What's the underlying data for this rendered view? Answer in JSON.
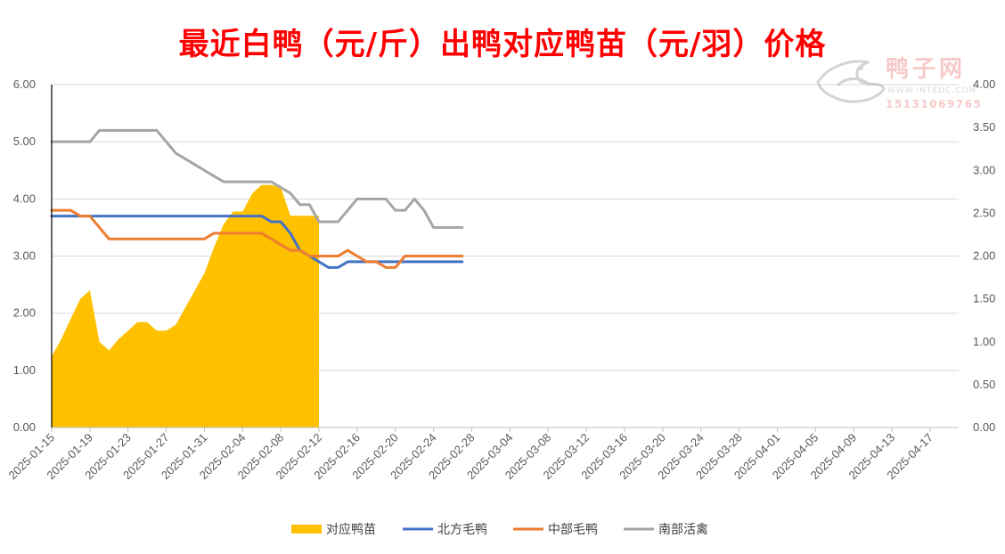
{
  "chart_data": {
    "type": "line",
    "title": "最近白鸭（元/斤）出鸭对应鸭苗（元/羽）价格",
    "left_axis": {
      "ylim": [
        0,
        6
      ],
      "ticks": [
        "0.00",
        "1.00",
        "2.00",
        "3.00",
        "4.00",
        "5.00",
        "6.00"
      ]
    },
    "right_axis": {
      "ylim": [
        0,
        4
      ],
      "ticks": [
        "0.00",
        "0.50",
        "1.00",
        "1.50",
        "2.00",
        "2.50",
        "3.00",
        "3.50",
        "4.00"
      ]
    },
    "x_start": "2025-01-15",
    "x_end": "2025-04-20",
    "x_tick_labels": [
      "2025-01-15",
      "2025-01-19",
      "2025-01-23",
      "2025-01-27",
      "2025-01-31",
      "2025-02-04",
      "2025-02-08",
      "2025-02-12",
      "2025-02-16",
      "2025-02-20",
      "2025-02-24",
      "2025-02-28",
      "2025-03-04",
      "2025-03-08",
      "2025-03-12",
      "2025-03-16",
      "2025-03-20",
      "2025-03-24",
      "2025-03-28",
      "2025-04-01",
      "2025-04-05",
      "2025-04-09",
      "2025-04-13",
      "2025-04-17"
    ],
    "grid": true,
    "legend_position": "bottom",
    "series": [
      {
        "name": "对应鸭苗",
        "type": "area",
        "axis": "right",
        "color": "#FFC000",
        "points": [
          [
            "2025-01-15",
            0.83
          ],
          [
            "2025-01-16",
            1.03
          ],
          [
            "2025-01-17",
            1.27
          ],
          [
            "2025-01-18",
            1.5
          ],
          [
            "2025-01-19",
            1.6
          ],
          [
            "2025-01-20",
            1.0
          ],
          [
            "2025-01-21",
            0.9
          ],
          [
            "2025-01-22",
            1.03
          ],
          [
            "2025-01-23",
            1.13
          ],
          [
            "2025-01-24",
            1.23
          ],
          [
            "2025-01-25",
            1.23
          ],
          [
            "2025-01-26",
            1.13
          ],
          [
            "2025-01-27",
            1.13
          ],
          [
            "2025-01-28",
            1.2
          ],
          [
            "2025-01-29",
            1.4
          ],
          [
            "2025-01-30",
            1.6
          ],
          [
            "2025-01-31",
            1.8
          ],
          [
            "2025-02-01",
            2.1
          ],
          [
            "2025-02-02",
            2.37
          ],
          [
            "2025-02-03",
            2.52
          ],
          [
            "2025-02-04",
            2.52
          ],
          [
            "2025-02-05",
            2.73
          ],
          [
            "2025-02-06",
            2.83
          ],
          [
            "2025-02-07",
            2.83
          ],
          [
            "2025-02-08",
            2.8
          ],
          [
            "2025-02-09",
            2.47
          ],
          [
            "2025-02-10",
            2.47
          ],
          [
            "2025-02-11",
            2.47
          ],
          [
            "2025-02-12",
            2.47
          ]
        ]
      },
      {
        "name": "北方毛鸭",
        "type": "line",
        "axis": "left",
        "color": "#4472C4",
        "points": [
          [
            "2025-01-15",
            3.7
          ],
          [
            "2025-01-16",
            3.7
          ],
          [
            "2025-01-17",
            3.7
          ],
          [
            "2025-01-18",
            3.7
          ],
          [
            "2025-01-19",
            3.7
          ],
          [
            "2025-01-20",
            3.7
          ],
          [
            "2025-01-21",
            3.7
          ],
          [
            "2025-01-22",
            3.7
          ],
          [
            "2025-01-23",
            3.7
          ],
          [
            "2025-01-24",
            3.7
          ],
          [
            "2025-01-25",
            3.7
          ],
          [
            "2025-01-26",
            3.7
          ],
          [
            "2025-01-27",
            3.7
          ],
          [
            "2025-01-28",
            3.7
          ],
          [
            "2025-01-29",
            3.7
          ],
          [
            "2025-01-30",
            3.7
          ],
          [
            "2025-01-31",
            3.7
          ],
          [
            "2025-02-01",
            3.7
          ],
          [
            "2025-02-02",
            3.7
          ],
          [
            "2025-02-03",
            3.7
          ],
          [
            "2025-02-04",
            3.7
          ],
          [
            "2025-02-05",
            3.7
          ],
          [
            "2025-02-06",
            3.7
          ],
          [
            "2025-02-07",
            3.6
          ],
          [
            "2025-02-08",
            3.6
          ],
          [
            "2025-02-09",
            3.4
          ],
          [
            "2025-02-10",
            3.1
          ],
          [
            "2025-02-11",
            3.0
          ],
          [
            "2025-02-12",
            2.9
          ],
          [
            "2025-02-13",
            2.8
          ],
          [
            "2025-02-14",
            2.8
          ],
          [
            "2025-02-15",
            2.9
          ],
          [
            "2025-02-16",
            2.9
          ],
          [
            "2025-02-17",
            2.9
          ],
          [
            "2025-02-18",
            2.9
          ],
          [
            "2025-02-19",
            2.9
          ],
          [
            "2025-02-20",
            2.9
          ],
          [
            "2025-02-21",
            2.9
          ],
          [
            "2025-02-22",
            2.9
          ],
          [
            "2025-02-23",
            2.9
          ],
          [
            "2025-02-24",
            2.9
          ],
          [
            "2025-02-25",
            2.9
          ],
          [
            "2025-02-26",
            2.9
          ],
          [
            "2025-02-27",
            2.9
          ]
        ]
      },
      {
        "name": "中部毛鸭",
        "type": "line",
        "axis": "left",
        "color": "#ED7D31",
        "points": [
          [
            "2025-01-15",
            3.8
          ],
          [
            "2025-01-16",
            3.8
          ],
          [
            "2025-01-17",
            3.8
          ],
          [
            "2025-01-18",
            3.7
          ],
          [
            "2025-01-19",
            3.7
          ],
          [
            "2025-01-20",
            3.5
          ],
          [
            "2025-01-21",
            3.3
          ],
          [
            "2025-01-22",
            3.3
          ],
          [
            "2025-01-23",
            3.3
          ],
          [
            "2025-01-24",
            3.3
          ],
          [
            "2025-01-25",
            3.3
          ],
          [
            "2025-01-26",
            3.3
          ],
          [
            "2025-01-27",
            3.3
          ],
          [
            "2025-01-28",
            3.3
          ],
          [
            "2025-01-29",
            3.3
          ],
          [
            "2025-01-30",
            3.3
          ],
          [
            "2025-01-31",
            3.3
          ],
          [
            "2025-02-01",
            3.4
          ],
          [
            "2025-02-02",
            3.4
          ],
          [
            "2025-02-03",
            3.4
          ],
          [
            "2025-02-04",
            3.4
          ],
          [
            "2025-02-05",
            3.4
          ],
          [
            "2025-02-06",
            3.4
          ],
          [
            "2025-02-07",
            3.3
          ],
          [
            "2025-02-08",
            3.2
          ],
          [
            "2025-02-09",
            3.1
          ],
          [
            "2025-02-10",
            3.1
          ],
          [
            "2025-02-11",
            3.0
          ],
          [
            "2025-02-12",
            3.0
          ],
          [
            "2025-02-13",
            3.0
          ],
          [
            "2025-02-14",
            3.0
          ],
          [
            "2025-02-15",
            3.1
          ],
          [
            "2025-02-16",
            3.0
          ],
          [
            "2025-02-17",
            2.9
          ],
          [
            "2025-02-18",
            2.9
          ],
          [
            "2025-02-19",
            2.8
          ],
          [
            "2025-02-20",
            2.8
          ],
          [
            "2025-02-21",
            3.0
          ],
          [
            "2025-02-22",
            3.0
          ],
          [
            "2025-02-23",
            3.0
          ],
          [
            "2025-02-24",
            3.0
          ],
          [
            "2025-02-25",
            3.0
          ],
          [
            "2025-02-26",
            3.0
          ],
          [
            "2025-02-27",
            3.0
          ]
        ]
      },
      {
        "name": "南部活禽",
        "type": "line",
        "axis": "left",
        "color": "#A5A5A5",
        "points": [
          [
            "2025-01-15",
            5.0
          ],
          [
            "2025-01-16",
            5.0
          ],
          [
            "2025-01-17",
            5.0
          ],
          [
            "2025-01-18",
            5.0
          ],
          [
            "2025-01-19",
            5.0
          ],
          [
            "2025-01-20",
            5.2
          ],
          [
            "2025-01-21",
            5.2
          ],
          [
            "2025-01-22",
            5.2
          ],
          [
            "2025-01-23",
            5.2
          ],
          [
            "2025-01-24",
            5.2
          ],
          [
            "2025-01-25",
            5.2
          ],
          [
            "2025-01-26",
            5.2
          ],
          [
            "2025-01-27",
            5.0
          ],
          [
            "2025-01-28",
            4.8
          ],
          [
            "2025-01-29",
            4.7
          ],
          [
            "2025-01-30",
            4.6
          ],
          [
            "2025-01-31",
            4.5
          ],
          [
            "2025-02-01",
            4.4
          ],
          [
            "2025-02-02",
            4.3
          ],
          [
            "2025-02-03",
            4.3
          ],
          [
            "2025-02-04",
            4.3
          ],
          [
            "2025-02-05",
            4.3
          ],
          [
            "2025-02-06",
            4.3
          ],
          [
            "2025-02-07",
            4.3
          ],
          [
            "2025-02-08",
            4.2
          ],
          [
            "2025-02-09",
            4.1
          ],
          [
            "2025-02-10",
            3.9
          ],
          [
            "2025-02-11",
            3.9
          ],
          [
            "2025-02-12",
            3.6
          ],
          [
            "2025-02-13",
            3.6
          ],
          [
            "2025-02-14",
            3.6
          ],
          [
            "2025-02-15",
            3.8
          ],
          [
            "2025-02-16",
            4.0
          ],
          [
            "2025-02-17",
            4.0
          ],
          [
            "2025-02-18",
            4.0
          ],
          [
            "2025-02-19",
            4.0
          ],
          [
            "2025-02-20",
            3.8
          ],
          [
            "2025-02-21",
            3.8
          ],
          [
            "2025-02-22",
            4.0
          ],
          [
            "2025-02-23",
            3.8
          ],
          [
            "2025-02-24",
            3.5
          ],
          [
            "2025-02-25",
            3.5
          ],
          [
            "2025-02-26",
            3.5
          ],
          [
            "2025-02-27",
            3.5
          ]
        ]
      }
    ]
  },
  "watermark": {
    "brand": "鸭子网",
    "site": "WWW.INTEDC.COM",
    "phone": "15131069765"
  }
}
